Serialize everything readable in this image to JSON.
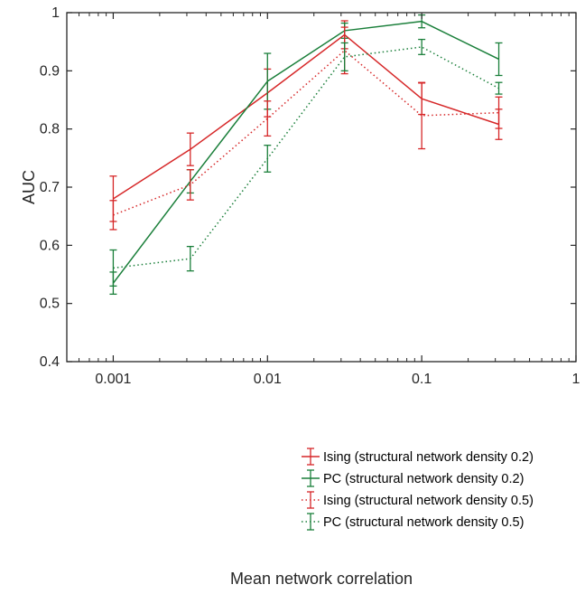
{
  "chart_data": {
    "type": "line",
    "title": "",
    "xlabel": "Mean network correlation",
    "ylabel": "AUC",
    "xscale": "log",
    "xlim": [
      0.0005,
      1
    ],
    "ylim": [
      0.4,
      1
    ],
    "x_ticks": [
      0.001,
      0.01,
      0.1,
      1
    ],
    "x_tick_labels": [
      "0.001",
      "0.01",
      "0.1",
      "1"
    ],
    "y_ticks": [
      0.4,
      0.5,
      0.6,
      0.7,
      0.8,
      0.9,
      1
    ],
    "y_tick_labels": [
      "0.4",
      "0.5",
      "0.6",
      "0.7",
      "0.8",
      "0.9",
      "1"
    ],
    "grid": false,
    "legend_position": "bottom-right",
    "x": [
      0.001,
      0.00316,
      0.01,
      0.0316,
      0.1,
      0.316
    ],
    "series": [
      {
        "name": "Ising (structural network density 0.2)",
        "color": "#d62728",
        "line_style": "solid",
        "values": [
          0.68,
          0.765,
          0.862,
          0.962,
          0.852,
          0.808
        ],
        "error_low": [
          0.641,
          0.737,
          0.821,
          0.938,
          0.825,
          0.782
        ],
        "error_high": [
          0.719,
          0.793,
          0.903,
          0.986,
          0.879,
          0.834
        ]
      },
      {
        "name": "PC (structural network density 0.2)",
        "color": "#1a7f3a",
        "line_style": "solid",
        "values": [
          0.535,
          0.71,
          0.882,
          0.969,
          0.985,
          0.92
        ],
        "error_low": [
          0.516,
          0.69,
          0.834,
          0.956,
          0.974,
          0.892
        ],
        "error_high": [
          0.554,
          0.73,
          0.93,
          0.982,
          0.996,
          0.948
        ]
      },
      {
        "name": "Ising (structural network density 0.5)",
        "color": "#d62728",
        "line_style": "dotted",
        "values": [
          0.652,
          0.704,
          0.818,
          0.935,
          0.823,
          0.828
        ],
        "error_low": [
          0.627,
          0.678,
          0.788,
          0.895,
          0.766,
          0.801
        ],
        "error_high": [
          0.677,
          0.73,
          0.848,
          0.975,
          0.88,
          0.855
        ]
      },
      {
        "name": "PC (structural network density 0.5)",
        "color": "#1a7f3a",
        "line_style": "dotted",
        "values": [
          0.561,
          0.577,
          0.749,
          0.924,
          0.941,
          0.87
        ],
        "error_low": [
          0.53,
          0.556,
          0.726,
          0.9,
          0.928,
          0.86
        ],
        "error_high": [
          0.592,
          0.598,
          0.772,
          0.948,
          0.954,
          0.88
        ]
      }
    ]
  }
}
